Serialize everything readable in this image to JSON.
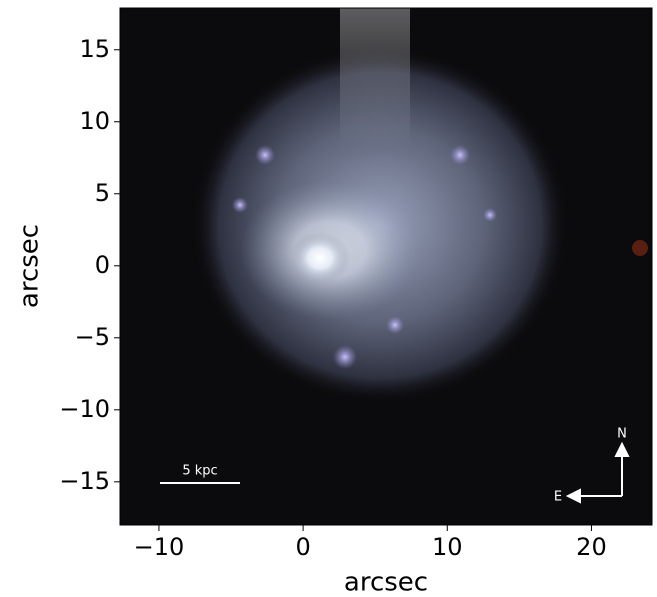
{
  "chart_data": {
    "type": "image",
    "xlabel": "arcsec",
    "ylabel": "arcsec",
    "xlim": [
      -12.7,
      24.2
    ],
    "ylim": [
      -18.0,
      17.9
    ],
    "xticks": [
      {
        "value": -10,
        "label": "−10"
      },
      0,
      10,
      20
    ],
    "yticks": [
      {
        "value": -15,
        "label": "−15"
      },
      {
        "value": -10,
        "label": "−10"
      },
      {
        "value": -5,
        "label": "−5"
      },
      0,
      5,
      10,
      15
    ],
    "annotations": {
      "scale_bar": "5 kpc",
      "north": "N",
      "east": "E"
    }
  }
}
